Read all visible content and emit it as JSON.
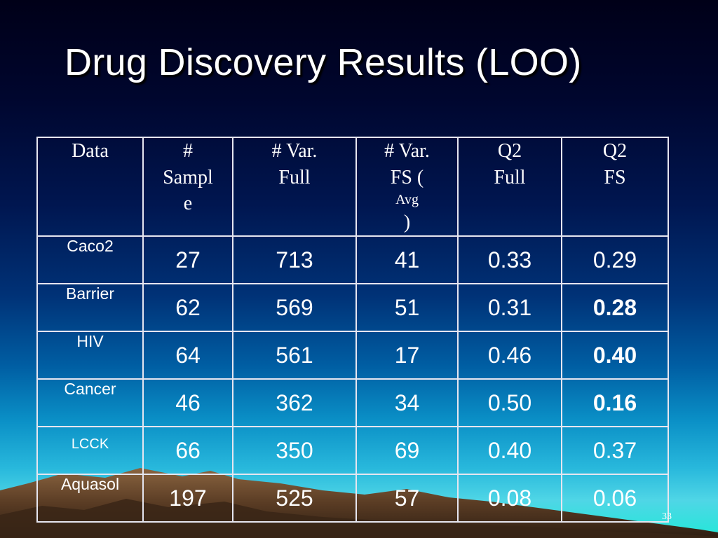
{
  "slide": {
    "title": "Drug Discovery Results (LOO)",
    "page_number": "33"
  },
  "table": {
    "headers": {
      "data": "Data",
      "sample_l1": "#",
      "sample_l2": "Sampl",
      "sample_l3": "e",
      "var_full_l1": "# Var.",
      "var_full_l2": "Full",
      "var_fs_l1": "# Var.",
      "var_fs_l2a": "FS (",
      "var_fs_avg": "Avg",
      "var_fs_l2b": ")",
      "q2_full_l1": "Q2",
      "q2_full_l2": "Full",
      "q2_fs_l1": "Q2",
      "q2_fs_l2": "FS"
    },
    "rows": [
      {
        "name": "Caco2",
        "sample": "27",
        "var_full": "713",
        "var_fs": "41",
        "q2_full": "0.33",
        "q2_fs": "0.29"
      },
      {
        "name": "Barrier",
        "sample": "62",
        "var_full": "569",
        "var_fs": "51",
        "q2_full": "0.31",
        "q2_fs": "0.28"
      },
      {
        "name": "HIV",
        "sample": "64",
        "var_full": "561",
        "var_fs": "17",
        "q2_full": "0.46",
        "q2_fs": "0.40"
      },
      {
        "name": "Cancer",
        "sample": "46",
        "var_full": "362",
        "var_fs": "34",
        "q2_full": "0.50",
        "q2_fs": "0.16"
      },
      {
        "name": "LCCK",
        "sample": "66",
        "var_full": "350",
        "var_fs": "69",
        "q2_full": "0.40",
        "q2_fs": "0.37"
      },
      {
        "name": "Aquasol",
        "sample": "197",
        "var_full": "525",
        "var_fs": "57",
        "q2_full": "0.08",
        "q2_fs": "0.06"
      }
    ]
  },
  "colors": {
    "text": "#ffffff",
    "border": "#e6e6f0",
    "mountain": "#6b4a30"
  }
}
